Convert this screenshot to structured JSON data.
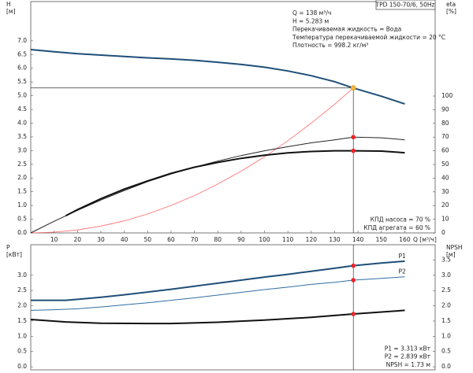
{
  "chart_data": [
    {
      "type": "line",
      "title": "TPD 150-70/6, 50Hz",
      "ylabel": [
        "H",
        "[м]"
      ],
      "y2label": [
        "eta",
        "[%]"
      ],
      "xlabel": "Q [м³/ч]",
      "xlim": [
        0,
        173
      ],
      "ylim": [
        0,
        8.43
      ],
      "y2lim": [
        0,
        169
      ],
      "xticks": [
        10,
        20,
        30,
        40,
        50,
        60,
        70,
        80,
        90,
        100,
        110,
        120,
        130,
        140,
        150,
        160
      ],
      "yticks": [
        {
          "value": 0,
          "label": "0.0"
        },
        {
          "value": 0.5,
          "label": "0.5"
        },
        {
          "value": 1,
          "label": "1.0"
        },
        {
          "value": 1.5,
          "label": "1.5"
        },
        {
          "value": 2,
          "label": "2.0"
        },
        {
          "value": 2.5,
          "label": "2.5"
        },
        {
          "value": 3,
          "label": "3.0"
        },
        {
          "value": 3.5,
          "label": "3.5"
        },
        {
          "value": 4,
          "label": "4.0"
        },
        {
          "value": 4.5,
          "label": "4.5"
        },
        {
          "value": 5,
          "label": "5.0"
        },
        {
          "value": 5.5,
          "label": "5.5"
        },
        {
          "value": 6,
          "label": "6.0"
        },
        {
          "value": 6.5,
          "label": "6.5"
        },
        {
          "value": 7,
          "label": "7.0"
        }
      ],
      "y2ticks": [
        0,
        10,
        20,
        30,
        40,
        50,
        60,
        70,
        80,
        90,
        100
      ],
      "info": [
        "Q = 138 м³/ч",
        "H = 5.283 м",
        "Перекачиваемая жидкость = Вода",
        "Температура перекачиваемой жидкости = 20 °C",
        "Плотность = 998.2 кг/м³"
      ],
      "notes": [
        "КПД насоса = 70 %",
        "КПД агрегата = 60 %"
      ],
      "duty_point": {
        "x": 138,
        "y": 5.283,
        "color": "#f5b63a"
      },
      "series": [
        {
          "color": "#1f4e79",
          "linewidth": 2,
          "axis": "y",
          "x": [
            0,
            10,
            20,
            30,
            40,
            50,
            60,
            70,
            80,
            90,
            100,
            110,
            120,
            130,
            138,
            150,
            160
          ],
          "values": [
            6.68,
            6.6,
            6.53,
            6.48,
            6.43,
            6.38,
            6.34,
            6.29,
            6.22,
            6.14,
            6.04,
            5.9,
            5.73,
            5.51,
            5.283,
            4.98,
            4.7
          ]
        },
        {
          "color": "#ff6b6b",
          "linewidth": 0.8,
          "axis": "y",
          "x": [
            0,
            10,
            20,
            30,
            40,
            50,
            60,
            70,
            80,
            90,
            100,
            110,
            120,
            130,
            138
          ],
          "values": [
            0,
            0.03,
            0.11,
            0.25,
            0.44,
            0.69,
            1.0,
            1.36,
            1.78,
            2.25,
            2.77,
            3.36,
            4.0,
            4.69,
            5.283
          ]
        },
        {
          "color": "#222222",
          "linewidth": 1,
          "axis": "y2",
          "marker": "#e8262a",
          "x": [
            0,
            10,
            20,
            30,
            40,
            50,
            60,
            70,
            80,
            90,
            100,
            110,
            120,
            130,
            138,
            150,
            160
          ],
          "values": [
            0,
            8.5,
            16.5,
            24,
            31,
            37.5,
            43,
            48,
            52.5,
            56.5,
            60,
            63,
            65.8,
            68,
            70,
            69.5,
            68
          ]
        },
        {
          "color": "#111111",
          "linewidth": 2,
          "axis": "y2",
          "marker": "#e8262a",
          "x": [
            15,
            20,
            30,
            40,
            50,
            60,
            70,
            80,
            90,
            100,
            110,
            120,
            130,
            138,
            150,
            160
          ],
          "values": [
            12.6,
            17,
            25,
            32,
            38,
            43.5,
            48,
            51.5,
            54.5,
            56.8,
            58.5,
            59.5,
            60,
            60,
            59.8,
            58.6
          ]
        }
      ]
    },
    {
      "type": "line",
      "ylabel": [
        "P",
        "[кВт]"
      ],
      "y2label": [
        "NPSH",
        "[м]"
      ],
      "xlim": [
        0,
        173
      ],
      "ylim": [
        -0.1,
        4.0
      ],
      "y2lim": [
        -0.1,
        4.0
      ],
      "yticks": [
        {
          "value": 0,
          "label": "0.0"
        },
        {
          "value": 0.5,
          "label": "0.5"
        },
        {
          "value": 1,
          "label": "1.0"
        },
        {
          "value": 1.5,
          "label": "1.5"
        },
        {
          "value": 2,
          "label": "2.0"
        },
        {
          "value": 2.5,
          "label": "2.5"
        },
        {
          "value": 3,
          "label": "3.0"
        }
      ],
      "y2ticks": [
        {
          "value": 0,
          "label": "0.0"
        },
        {
          "value": 0.5,
          "label": "0.5"
        },
        {
          "value": 1,
          "label": "1.0"
        },
        {
          "value": 1.5,
          "label": "1.5"
        },
        {
          "value": 2,
          "label": "2.0"
        },
        {
          "value": 2.5,
          "label": "2.5"
        },
        {
          "value": 3,
          "label": "3.0"
        },
        {
          "value": 3.5,
          "label": "3.5"
        }
      ],
      "notes": [
        "P1 = 3.313 кВт",
        "P2 = 2.839 кВт",
        "NPSH = 1.73 м"
      ],
      "duty_x": 138,
      "series": [
        {
          "name": "P1",
          "color": "#1f4e79",
          "linewidth": 2,
          "axis": "y",
          "marker": "#e8262a",
          "x": [
            0,
            15,
            20,
            30,
            40,
            50,
            60,
            70,
            80,
            90,
            100,
            110,
            120,
            130,
            138,
            150,
            160
          ],
          "values": [
            2.18,
            2.18,
            2.21,
            2.28,
            2.36,
            2.45,
            2.54,
            2.64,
            2.74,
            2.84,
            2.94,
            3.03,
            3.13,
            3.23,
            3.313,
            3.4,
            3.46
          ]
        },
        {
          "name": "P2",
          "color": "#2e6da4",
          "linewidth": 1,
          "axis": "y",
          "marker": "#e8262a",
          "x": [
            0,
            10,
            20,
            30,
            40,
            50,
            60,
            70,
            80,
            90,
            100,
            110,
            120,
            130,
            138,
            150,
            160
          ],
          "values": [
            1.85,
            1.87,
            1.9,
            1.96,
            2.03,
            2.1,
            2.18,
            2.26,
            2.35,
            2.44,
            2.53,
            2.61,
            2.7,
            2.77,
            2.839,
            2.9,
            2.95
          ]
        },
        {
          "color": "#111111",
          "linewidth": 2,
          "axis": "y2",
          "marker": "#e8262a",
          "x": [
            0,
            15,
            30,
            50,
            60,
            80,
            100,
            120,
            138,
            160
          ],
          "values": [
            1.55,
            1.47,
            1.43,
            1.42,
            1.42,
            1.46,
            1.53,
            1.62,
            1.73,
            1.85
          ]
        }
      ]
    }
  ]
}
